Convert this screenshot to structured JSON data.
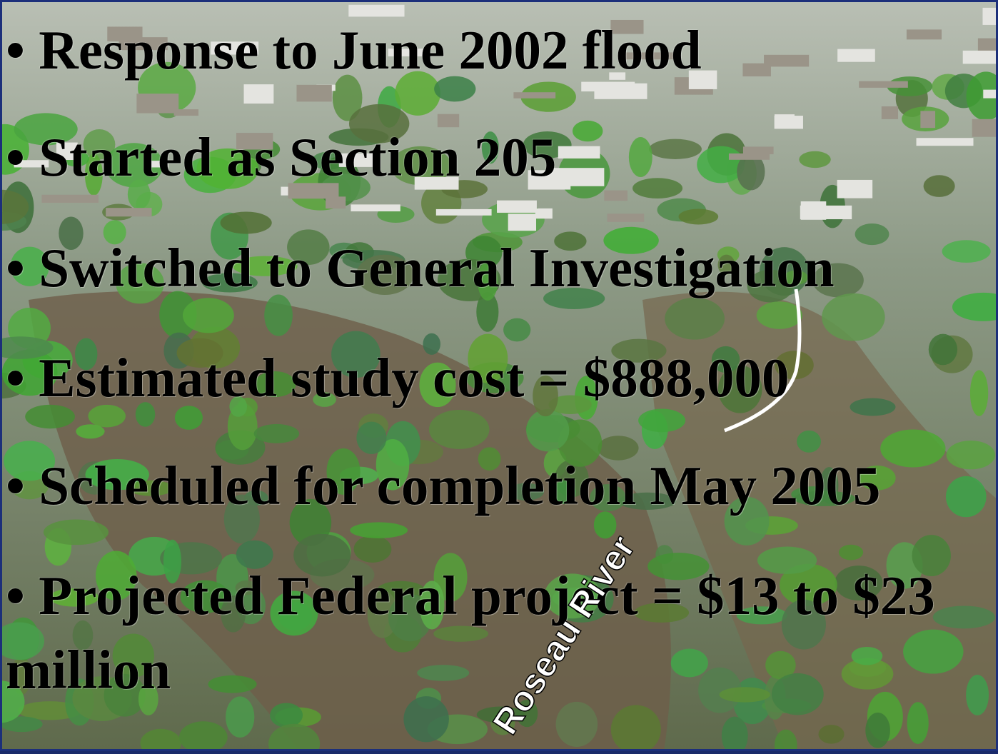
{
  "slide": {
    "bullets": [
      "• Response to June 2002 flood",
      "• Started as Section 205",
      "• Switched to General Investigation",
      "• Estimated study cost = $888,000",
      "• Scheduled for completion May 2005",
      "• Projected Federal project = $13 to $23 million"
    ],
    "map_label": "Roseau River"
  }
}
